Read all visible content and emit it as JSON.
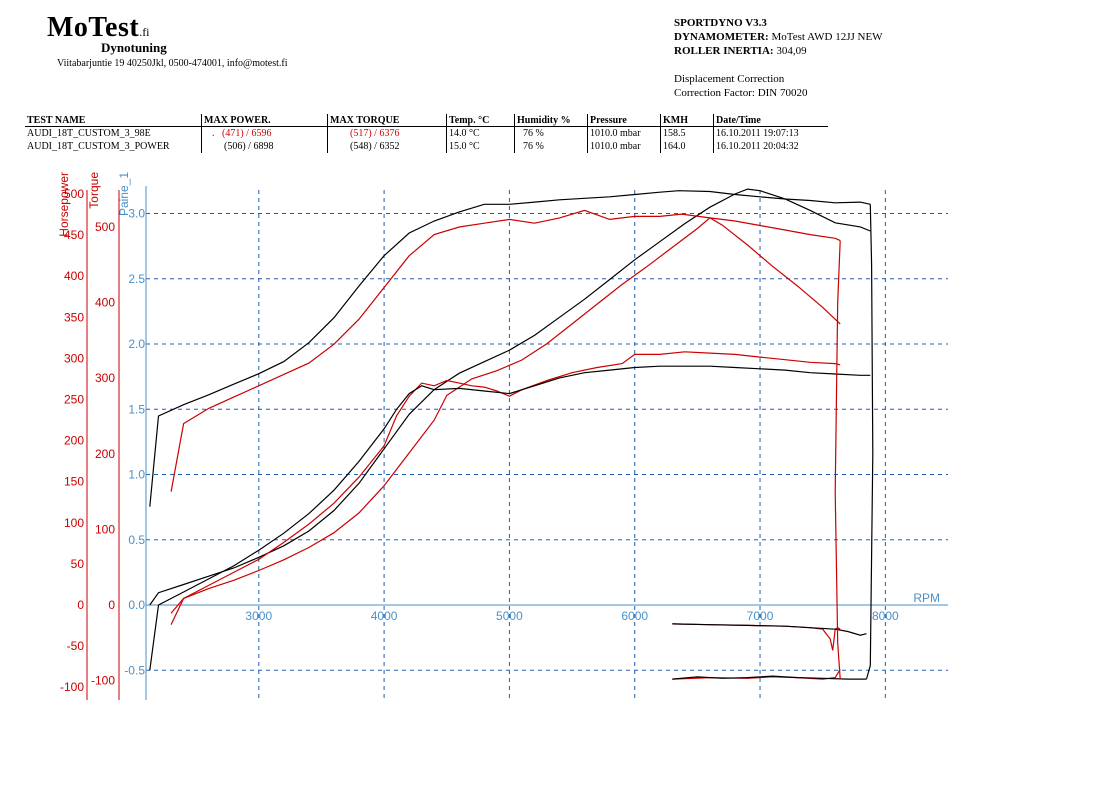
{
  "logo": {
    "main": "MoTest",
    "sup": ".fi",
    "sub": "Dynotuning"
  },
  "address": "Viitabarjuntie 19 40250Jkl, 0500-474001, info@motest.fi",
  "header": {
    "line1": "SPORTDYNO V3.3",
    "dyn_label": "DYNAMOMETER:",
    "dyn_value": "MoTest AWD 12JJ NEW",
    "inertia_label": "ROLLER INERTIA:",
    "inertia_value": "304,09",
    "disp": "Displacement Correction",
    "factor": "Correction Factor: DIN 70020"
  },
  "table": {
    "columns": [
      "TEST NAME",
      "MAX POWER.",
      "MAX TORQUE",
      "Temp. °C",
      "Humidity %",
      "Pressure",
      "KMH",
      "Date/Time"
    ],
    "rows": [
      {
        "name": "AUDI_18T_CUSTOM_3_98E",
        "power": "(471) / 6596",
        "torque": "(517) / 6376",
        "temp": "14.0 °C",
        "humidity": "76 %",
        "pressure": "1010.0 mbar",
        "kmh": "158.5",
        "date": "16.10.2011 19:07:13"
      },
      {
        "name": "AUDI_18T_CUSTOM_3_POWER",
        "power": "(506) / 6898",
        "torque": "(548) / 6352",
        "temp": "15.0 °C",
        "humidity": "76 %",
        "pressure": "1010.0 mbar",
        "kmh": "164.0",
        "date": "16.10.2011 20:04:32"
      }
    ]
  },
  "chart_data": {
    "type": "line",
    "xlabel": "RPM",
    "xlim": [
      2100,
      8500
    ],
    "x_ticks": [
      3000,
      4000,
      5000,
      6000,
      7000,
      8000
    ],
    "grid": true,
    "axes": {
      "horsepower": {
        "label": "Horsepower",
        "color": "#cc0000",
        "range": [
          -100,
          500
        ],
        "ticks": [
          -100,
          -50,
          0,
          50,
          100,
          150,
          200,
          250,
          300,
          350,
          400,
          450,
          500
        ]
      },
      "torque": {
        "label": "Torque",
        "color": "#cc0000",
        "range": [
          -100,
          550
        ],
        "ticks": [
          -100,
          0,
          100,
          200,
          300,
          400,
          500
        ]
      },
      "paine": {
        "label": "Paine_1",
        "color": "#4a90c8",
        "range": [
          -0.6,
          3.0
        ],
        "ticks": [
          -0.5,
          0.0,
          0.5,
          1.0,
          1.5,
          2.0,
          2.5,
          3.0
        ]
      }
    },
    "series": [
      {
        "color": "#cc0000",
        "axis": "horsepower",
        "x": [
          2300,
          2400,
          2600,
          2800,
          3000,
          3200,
          3400,
          3600,
          3800,
          4000,
          4200,
          4400,
          4500,
          4700,
          4900,
          5100,
          5300,
          5500,
          5700,
          5900,
          6100,
          6300,
          6500,
          6600,
          6700,
          6900,
          7100,
          7300,
          7500,
          7640
        ],
        "y": [
          -10,
          8,
          20,
          30,
          42,
          55,
          70,
          88,
          112,
          145,
          185,
          225,
          255,
          275,
          285,
          298,
          318,
          342,
          366,
          390,
          412,
          435,
          458,
          471,
          462,
          438,
          412,
          388,
          362,
          342
        ]
      },
      {
        "color": "#000000",
        "axis": "horsepower",
        "x": [
          2130,
          2200,
          2400,
          2600,
          2800,
          3000,
          3200,
          3400,
          3600,
          3800,
          4000,
          4200,
          4400,
          4600,
          4800,
          5000,
          5200,
          5400,
          5600,
          5800,
          6000,
          6200,
          6400,
          6600,
          6800,
          6900,
          7000,
          7200,
          7400,
          7600,
          7800,
          7880
        ],
        "y": [
          0,
          15,
          25,
          35,
          45,
          58,
          72,
          90,
          115,
          148,
          190,
          232,
          262,
          282,
          296,
          310,
          328,
          350,
          372,
          396,
          420,
          442,
          464,
          484,
          500,
          506,
          504,
          494,
          480,
          465,
          460,
          455
        ]
      },
      {
        "color": "#cc0000",
        "axis": "torque",
        "x": [
          2300,
          2400,
          2600,
          2800,
          3000,
          3200,
          3400,
          3600,
          3800,
          4000,
          4200,
          4400,
          4600,
          4800,
          5000,
          5200,
          5400,
          5600,
          5800,
          6000,
          6200,
          6376,
          6600,
          6800,
          7000,
          7200,
          7400,
          7600,
          7640
        ],
        "y": [
          150,
          240,
          260,
          275,
          290,
          305,
          320,
          345,
          378,
          420,
          462,
          490,
          500,
          505,
          510,
          505,
          512,
          522,
          510,
          514,
          514,
          517,
          512,
          508,
          502,
          496,
          490,
          485,
          482
        ]
      },
      {
        "color": "#000000",
        "axis": "torque",
        "x": [
          2130,
          2200,
          2400,
          2600,
          2800,
          3000,
          3200,
          3400,
          3600,
          3800,
          4000,
          4200,
          4400,
          4600,
          4800,
          5000,
          5200,
          5400,
          5600,
          5800,
          6000,
          6200,
          6352,
          6600,
          6800,
          7000,
          7200,
          7400,
          7600,
          7800,
          7880
        ],
        "y": [
          130,
          250,
          265,
          278,
          292,
          306,
          322,
          347,
          380,
          422,
          462,
          492,
          508,
          520,
          530,
          530,
          533,
          536,
          538,
          540,
          543,
          546,
          548,
          547,
          543,
          540,
          537,
          535,
          532,
          533,
          530
        ]
      },
      {
        "color": "#cc0000",
        "axis": "paine",
        "x": [
          2300,
          2400,
          2600,
          2800,
          3000,
          3200,
          3400,
          3600,
          3800,
          4000,
          4100,
          4200,
          4300,
          4400,
          4500,
          4600,
          4700,
          4800,
          4900,
          5000,
          5100,
          5300,
          5500,
          5700,
          5900,
          6000,
          6200,
          6400,
          6600,
          6800,
          7000,
          7200,
          7400,
          7600,
          7640
        ],
        "y": [
          -0.15,
          0.05,
          0.15,
          0.25,
          0.35,
          0.48,
          0.62,
          0.78,
          0.98,
          1.22,
          1.45,
          1.6,
          1.7,
          1.68,
          1.72,
          1.7,
          1.68,
          1.67,
          1.64,
          1.6,
          1.65,
          1.72,
          1.78,
          1.82,
          1.85,
          1.92,
          1.92,
          1.94,
          1.93,
          1.92,
          1.9,
          1.88,
          1.86,
          1.85,
          1.84
        ]
      },
      {
        "color": "#000000",
        "axis": "paine",
        "x": [
          2130,
          2200,
          2400,
          2600,
          2800,
          3000,
          3200,
          3400,
          3600,
          3800,
          4000,
          4100,
          4200,
          4300,
          4400,
          4600,
          4800,
          5000,
          5200,
          5400,
          5600,
          5800,
          6000,
          6200,
          6400,
          6600,
          6800,
          7000,
          7200,
          7400,
          7600,
          7800,
          7880
        ],
        "y": [
          -0.5,
          0.0,
          0.1,
          0.2,
          0.3,
          0.42,
          0.55,
          0.7,
          0.88,
          1.1,
          1.35,
          1.5,
          1.62,
          1.68,
          1.65,
          1.66,
          1.64,
          1.62,
          1.68,
          1.74,
          1.78,
          1.8,
          1.82,
          1.83,
          1.83,
          1.83,
          1.82,
          1.81,
          1.8,
          1.78,
          1.77,
          1.76,
          1.76
        ]
      },
      {
        "color": "#cc0000",
        "axis": "torque",
        "x": [
          6300,
          6600,
          6900,
          7200,
          7400,
          7500,
          7560,
          7580,
          7600,
          7620,
          7640
        ],
        "y": [
          -25,
          -26,
          -27,
          -28,
          -30,
          -32,
          -45,
          -60,
          -32,
          -30,
          -32
        ]
      },
      {
        "color": "#000000",
        "axis": "torque",
        "x": [
          6300,
          6600,
          6900,
          7200,
          7400,
          7600,
          7700,
          7800,
          7850
        ],
        "y": [
          -25,
          -26,
          -27,
          -28,
          -30,
          -32,
          -35,
          -40,
          -38
        ]
      },
      {
        "color": "#cc0000",
        "axis": "torque",
        "x": [
          6300,
          6600,
          6900,
          7100,
          7300,
          7500,
          7600,
          7640
        ],
        "y": [
          -98,
          -96,
          -97,
          -95,
          -96,
          -98,
          -96,
          -85
        ]
      },
      {
        "color": "#000000",
        "axis": "torque",
        "x": [
          6300,
          6500,
          6700,
          6900,
          7100,
          7300,
          7500,
          7700,
          7850
        ],
        "y": [
          -98,
          -95,
          -97,
          -96,
          -94,
          -96,
          -97,
          -98,
          -98
        ]
      },
      {
        "color": "#cc0000",
        "axis": "torque",
        "x": [
          7640,
          7620,
          7600,
          7620,
          7640
        ],
        "y": [
          482,
          400,
          150,
          -50,
          -98
        ]
      },
      {
        "color": "#000000",
        "axis": "torque",
        "x": [
          7880,
          7890,
          7900,
          7880,
          7850
        ],
        "y": [
          530,
          450,
          200,
          -80,
          -98
        ]
      }
    ]
  }
}
